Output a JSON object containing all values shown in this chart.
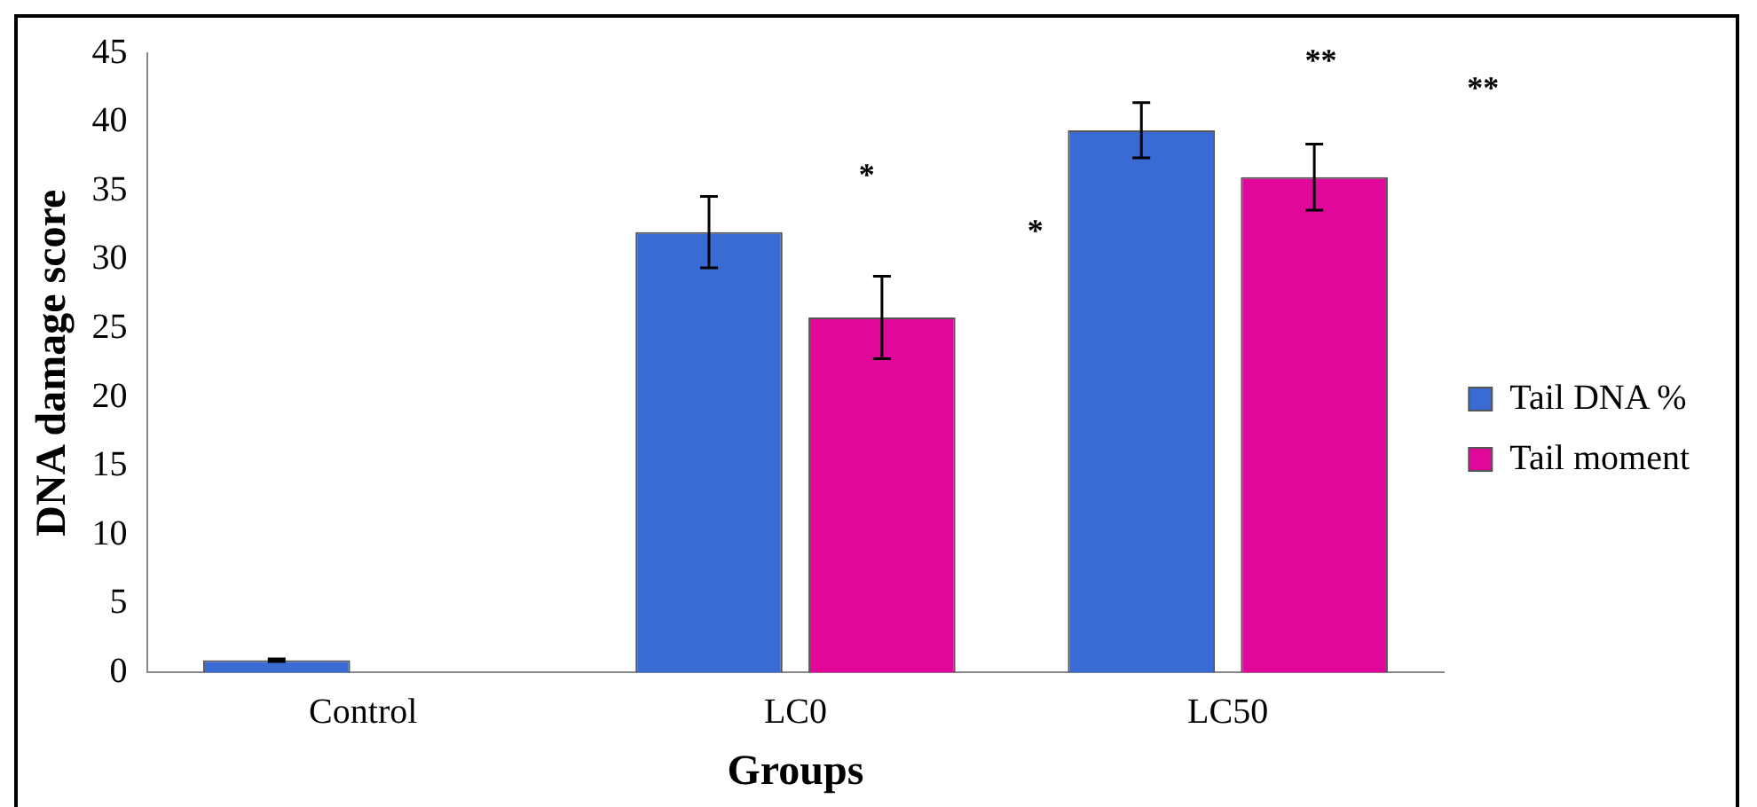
{
  "chart_data": {
    "type": "bar",
    "xlabel": "Groups",
    "ylabel": "DNA damage score",
    "categories": [
      "Control",
      "LC0",
      "LC50"
    ],
    "series": [
      {
        "name": "Tail DNA %",
        "color": "#3a6bd4",
        "values": [
          0.9,
          32,
          39.4
        ],
        "errors": [
          0.1,
          2.6,
          2
        ]
      },
      {
        "name": "Tail moment",
        "color": "#e0079a",
        "values": [
          null,
          25.8,
          36
        ],
        "errors": [
          null,
          3,
          2.4
        ]
      }
    ],
    "ylim": [
      0,
      45
    ],
    "yticks": [
      0,
      5,
      10,
      15,
      20,
      25,
      30,
      35,
      40,
      45
    ],
    "annotations": [
      "*",
      "*",
      "**",
      "**"
    ],
    "legend": "right",
    "grid": false
  }
}
